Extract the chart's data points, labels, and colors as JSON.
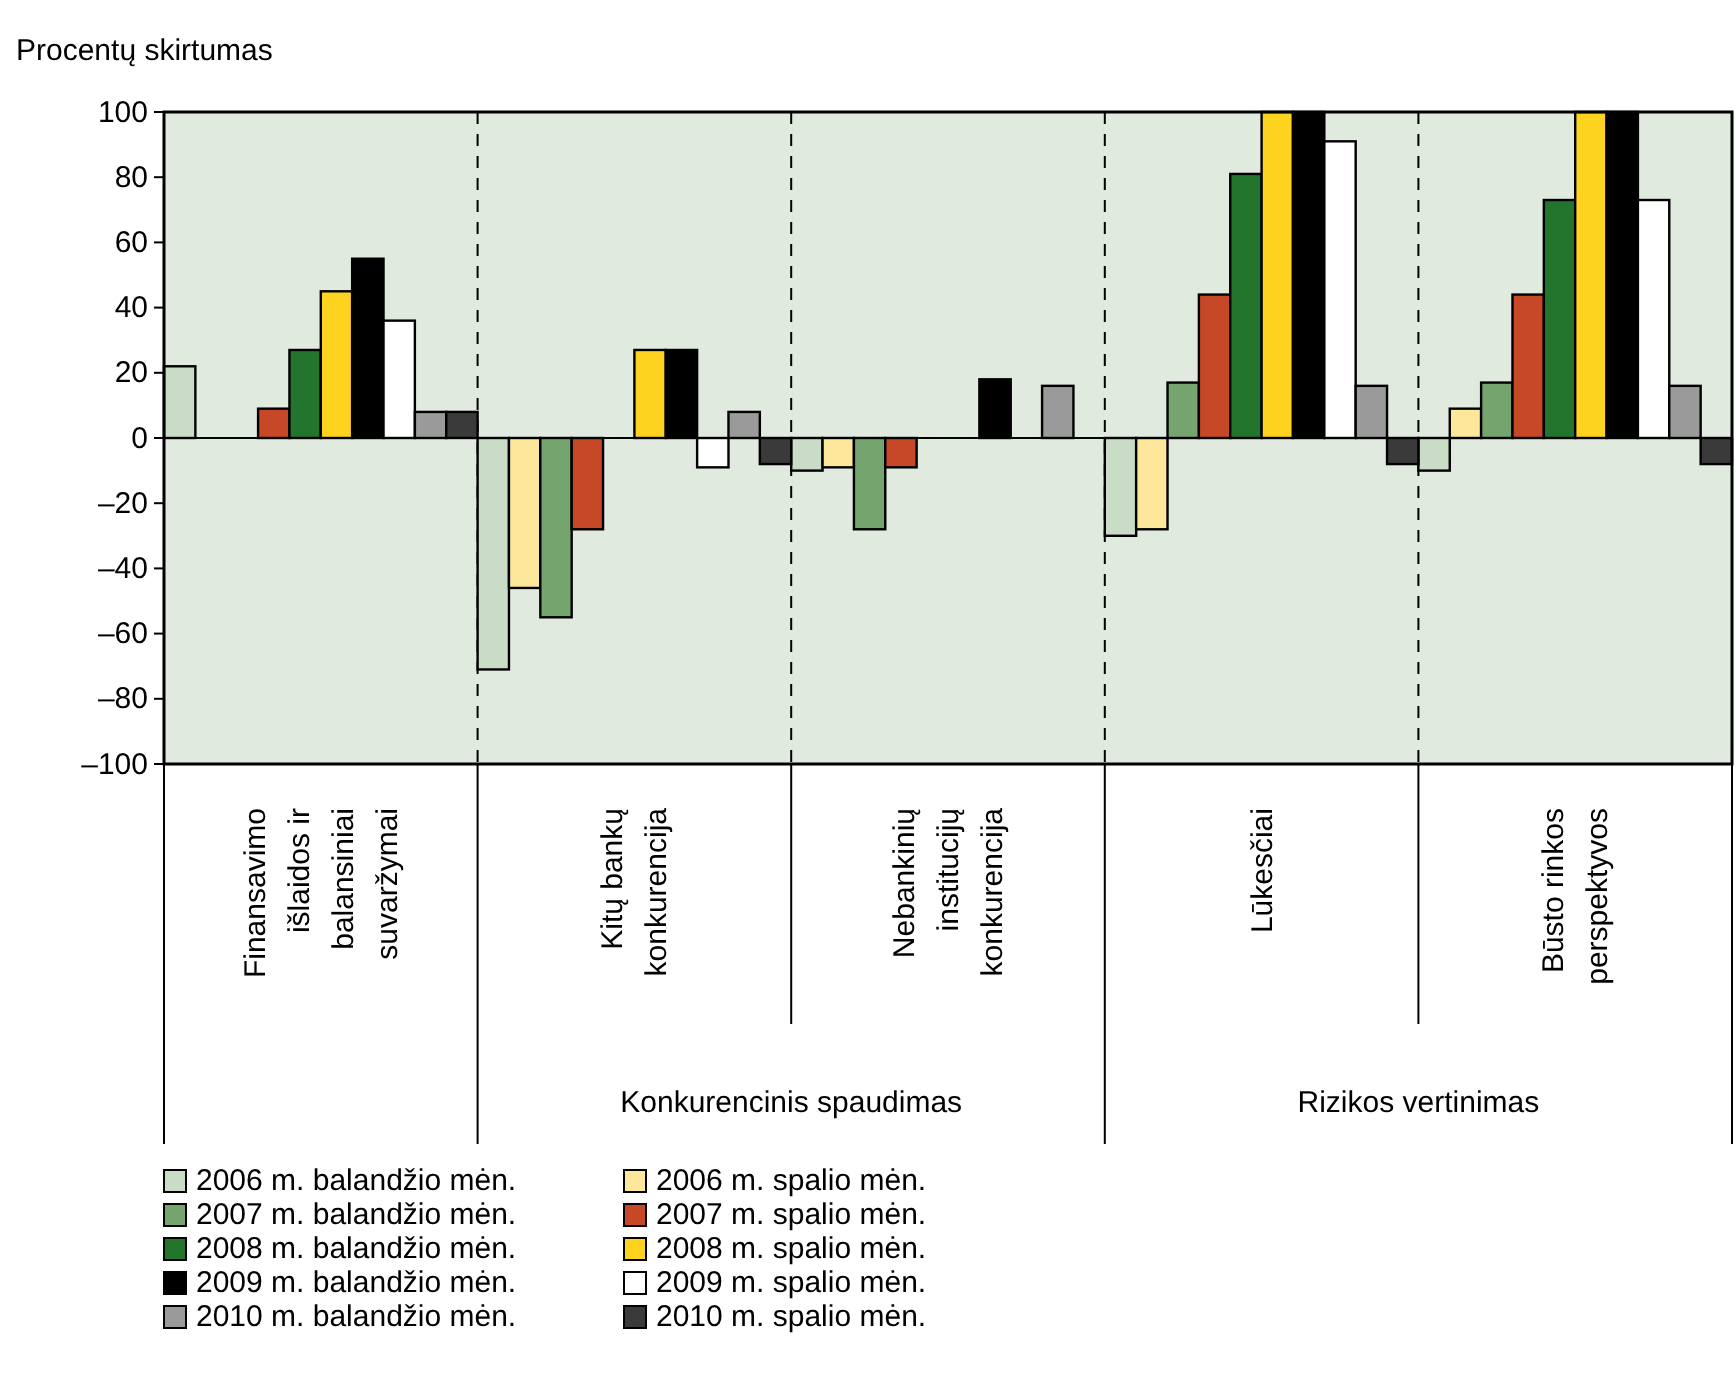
{
  "chart_data": {
    "type": "bar",
    "ylabel": "Procentų skirtumas",
    "categories": [
      "Finansavimo išlaidos ir balansiniai suvaržymai",
      "Kitų bankų konkurencija",
      "Nebankinių institucijų konkurencija",
      "Lūkesčiai",
      "Būsto rinkos perspektyvos"
    ],
    "series": [
      {
        "name": "2006 m. balandžio mėn.",
        "color": "#c9dcc5",
        "values": [
          22,
          -71,
          -10,
          -30,
          -10
        ]
      },
      {
        "name": "2006 m. spalio mėn.",
        "color": "#fde79b",
        "values": [
          0,
          -46,
          -9,
          -28,
          9
        ]
      },
      {
        "name": "2007 m. balandžio mėn.",
        "color": "#76a46f",
        "values": [
          0,
          -55,
          -28,
          17,
          17
        ]
      },
      {
        "name": "2007 m. spalio mėn.",
        "color": "#c64826",
        "values": [
          9,
          -28,
          -9,
          44,
          44
        ]
      },
      {
        "name": "2008 m. balandžio mėn.",
        "color": "#23742d",
        "values": [
          27,
          0,
          0,
          81,
          73
        ]
      },
      {
        "name": "2008 m. spalio mėn.",
        "color": "#fed31f",
        "values": [
          45,
          27,
          0,
          100,
          100
        ]
      },
      {
        "name": "2009 m. balandžio mėn.",
        "color": "#000000",
        "values": [
          55,
          27,
          18,
          100,
          100
        ]
      },
      {
        "name": "2009 m. spalio mėn.",
        "color": "#ffffff",
        "values": [
          36,
          -9,
          0,
          91,
          73
        ]
      },
      {
        "name": "2010 m. balandžio mėn.",
        "color": "#9a9a9a",
        "values": [
          8,
          8,
          16,
          16,
          16
        ]
      },
      {
        "name": "2010 m. spalio mėn.",
        "color": "#3a3a3a",
        "values": [
          8,
          -8,
          0,
          -8,
          -8
        ]
      }
    ],
    "ylim": [
      -100,
      100
    ],
    "yticks": [
      {
        "value": -100,
        "label": "–100"
      },
      {
        "value": -80,
        "label": "–80"
      },
      {
        "value": -60,
        "label": "–60"
      },
      {
        "value": -40,
        "label": "–40"
      },
      {
        "value": -20,
        "label": "–20"
      },
      0,
      20,
      40,
      60,
      80,
      100
    ],
    "annotations": [
      "Konkurencinis spaudimas",
      "Rizikos vertinimas"
    ],
    "grid": false,
    "legend": "bottom left"
  }
}
